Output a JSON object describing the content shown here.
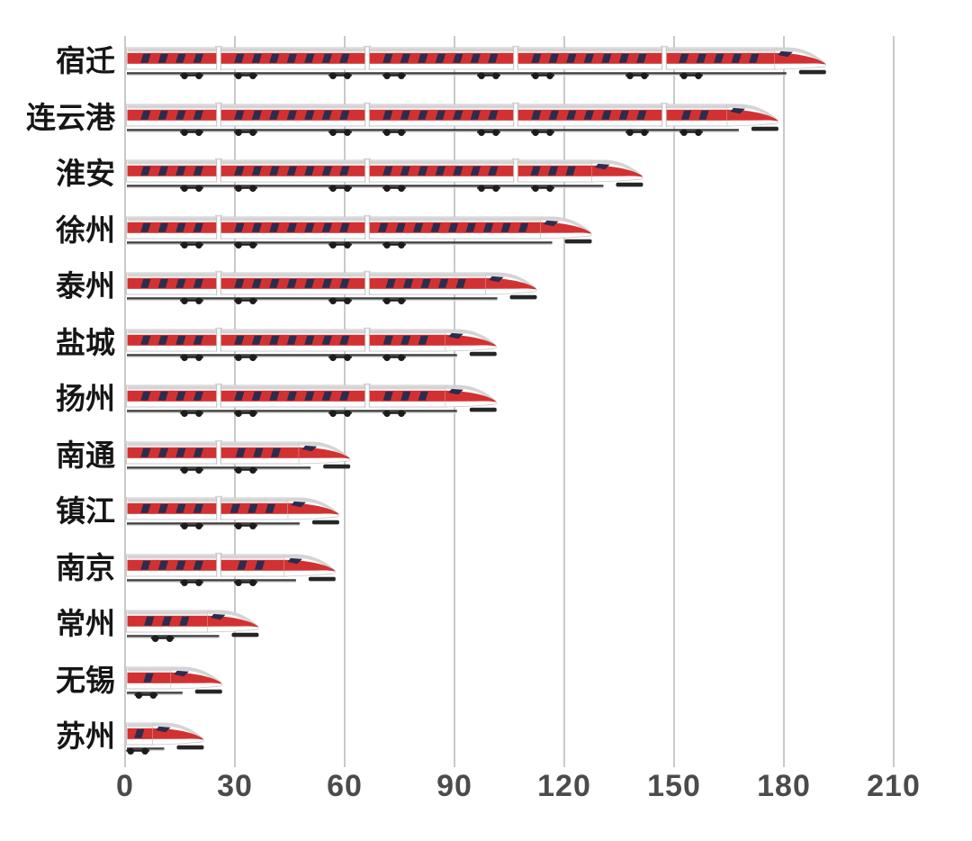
{
  "chart_data": {
    "type": "bar",
    "orientation": "horizontal",
    "title": "",
    "xlabel": "",
    "ylabel": "",
    "categories": [
      "宿迁",
      "连云港",
      "淮安",
      "徐州",
      "泰州",
      "盐城",
      "扬州",
      "南通",
      "镇江",
      "南京",
      "常州",
      "无锡",
      "苏州"
    ],
    "values": [
      192,
      179,
      142,
      128,
      113,
      102,
      102,
      62,
      59,
      58,
      37,
      27,
      22
    ],
    "xlim": [
      0,
      210
    ],
    "xticks": [
      "0",
      "30",
      "60",
      "90",
      "120",
      "150",
      "180",
      "210"
    ],
    "grid": true,
    "legend": null,
    "bar_style": "high-speed-train-pictogram"
  },
  "colors": {
    "background": "#ffffff",
    "gridline": "#c9c9c9",
    "tick_label": "#4b4b4b",
    "category_label": "#161616",
    "train_red": "#d23132",
    "train_window": "#2c2c4e",
    "train_roof": "#d4d4d4",
    "train_body": "#ffffff",
    "train_outline": "#c9c9c9",
    "train_under": "#3f3f3f",
    "train_wheel": "#1c1c1c",
    "train_skirt": "#262626"
  },
  "icons": [
    {
      "name": "train-pictogram",
      "meaning": "each bar is drawn as a red-striped high-speed train"
    }
  ]
}
